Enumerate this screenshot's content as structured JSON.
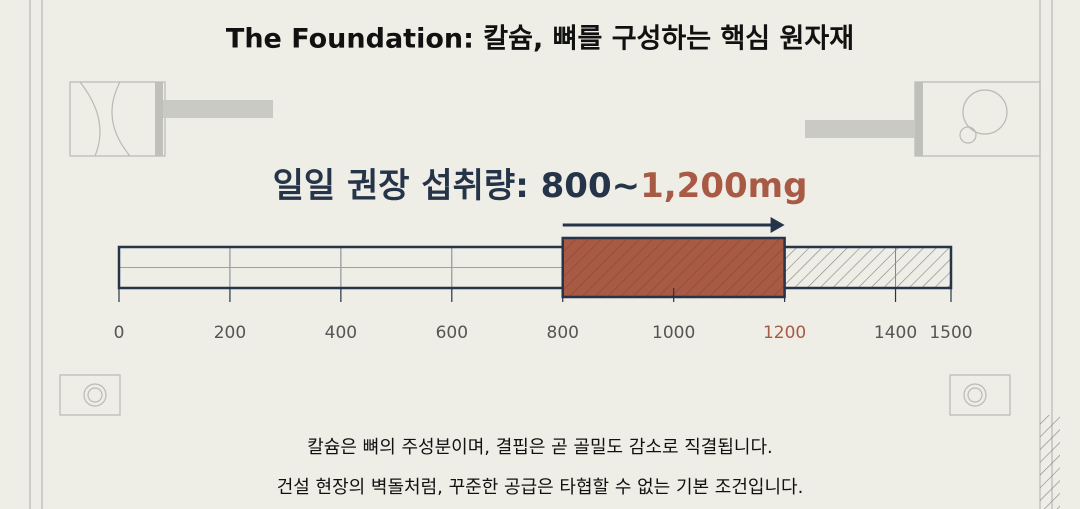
{
  "chart_data": {
    "type": "range",
    "title": "The Foundation: 칼슘, 뼈를 구성하는 핵심 원자재",
    "subtitle": [
      "일일 권장 섭취량: 800~",
      "1,200mg"
    ],
    "range": [
      800,
      1200
    ],
    "color": "#a85a45",
    "xlim": [
      0,
      1500
    ],
    "xticks": [
      0,
      200,
      400,
      600,
      800,
      1000,
      1200,
      1400,
      1500
    ],
    "grid": true,
    "caption": [
      "칼슘은 뼈의 주성분이며, 결핍은 곧 골밀도 감소로 직결됩니다.",
      "건설 현장의 벽돌처럼, 꾸준한 공급은 타협할 수 없는 기본 조건입니다."
    ]
  }
}
